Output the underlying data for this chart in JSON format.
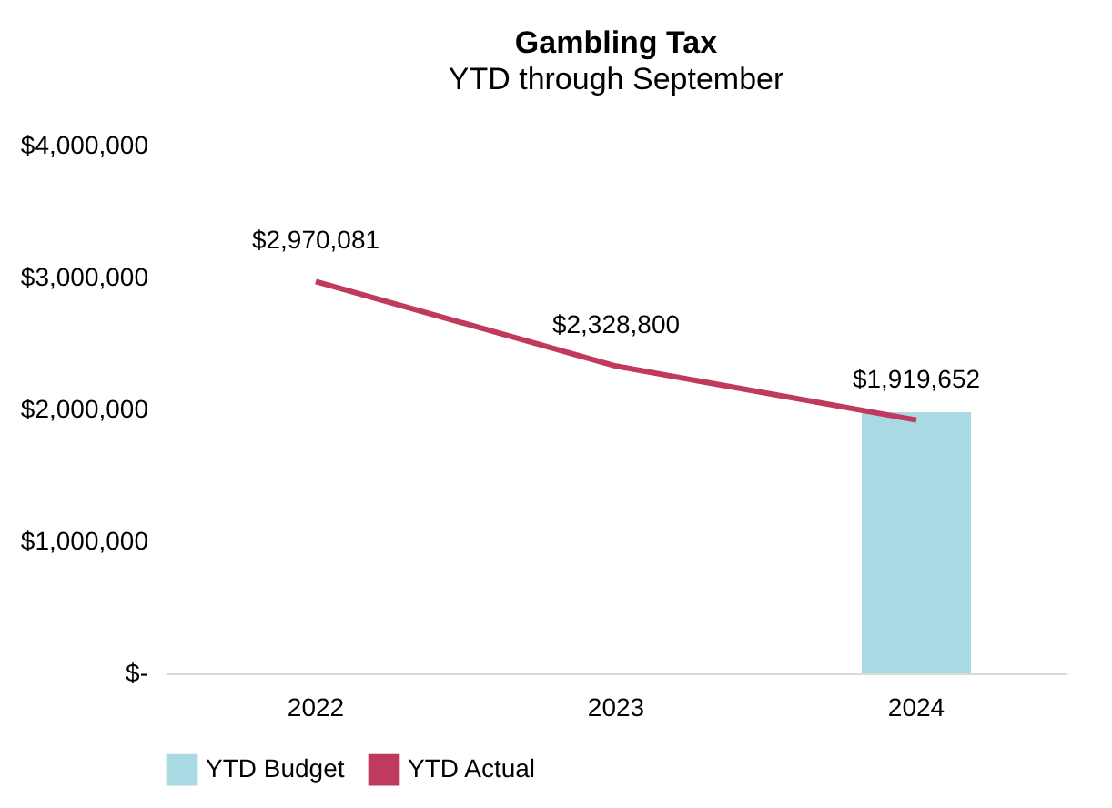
{
  "chart_data": {
    "type": "bar",
    "title": "Gambling Tax",
    "subtitle": "YTD through September",
    "categories": [
      "2022",
      "2023",
      "2024"
    ],
    "series": [
      {
        "name": "YTD Budget",
        "color": "#a9d9e2",
        "values": [
          null,
          null,
          1980000
        ]
      },
      {
        "name": "YTD Actual",
        "type": "line",
        "color": "#c03a5e",
        "values": [
          2970081,
          2328800,
          1919652
        ],
        "value_labels": [
          "$2,970,081",
          "$2,328,800",
          "$1,919,652"
        ]
      }
    ],
    "ylim": [
      0,
      4000000
    ],
    "yticks": [
      {
        "value": 0,
        "label": "$-"
      },
      {
        "value": 1000000,
        "label": "$1,000,000"
      },
      {
        "value": 2000000,
        "label": "$2,000,000"
      },
      {
        "value": 3000000,
        "label": "$3,000,000"
      },
      {
        "value": 4000000,
        "label": "$4,000,000"
      }
    ],
    "grid": false,
    "legend": "bottom"
  }
}
